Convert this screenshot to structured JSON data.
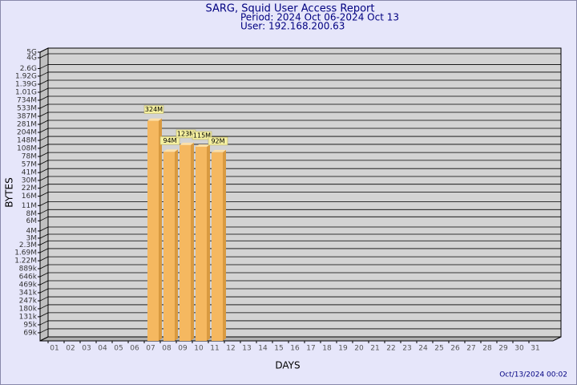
{
  "chart_data": {
    "type": "bar",
    "title": "SARG, Squid User Access Report",
    "subtitle": "Period: 2024 Oct 06-2024 Oct 13",
    "user": "User: 192.168.200.63",
    "xlabel": "DAYS",
    "ylabel": "BYTES",
    "footer": "Oct/13/2024 00:02",
    "categories": [
      "01",
      "02",
      "03",
      "04",
      "05",
      "06",
      "07",
      "08",
      "09",
      "10",
      "11",
      "12",
      "13",
      "14",
      "15",
      "16",
      "17",
      "18",
      "19",
      "20",
      "21",
      "22",
      "23",
      "24",
      "25",
      "26",
      "27",
      "28",
      "29",
      "30",
      "31"
    ],
    "values": [
      null,
      null,
      null,
      null,
      null,
      null,
      324000000,
      94000000,
      123000000,
      115000000,
      92000000,
      null,
      null,
      null,
      null,
      null,
      null,
      null,
      null,
      null,
      null,
      null,
      null,
      null,
      null,
      null,
      null,
      null,
      null,
      null,
      null
    ],
    "value_labels": [
      null,
      null,
      null,
      null,
      null,
      null,
      "324M",
      "94M",
      "123M",
      "115M",
      "92M",
      null,
      null,
      null,
      null,
      null,
      null,
      null,
      null,
      null,
      null,
      null,
      null,
      null,
      null,
      null,
      null,
      null,
      null,
      null,
      null
    ],
    "color": "#f5b860",
    "log_scale": true,
    "grid": true,
    "ylim": [
      50000,
      5000000000
    ],
    "yticks": [
      {
        "value": 69000,
        "label": "69k"
      },
      {
        "value": 95000,
        "label": "95k"
      },
      {
        "value": 131000,
        "label": "131k"
      },
      {
        "value": 180000,
        "label": "180k"
      },
      {
        "value": 247000,
        "label": "247k"
      },
      {
        "value": 341000,
        "label": "341k"
      },
      {
        "value": 469000,
        "label": "469k"
      },
      {
        "value": 646000,
        "label": "646k"
      },
      {
        "value": 889000,
        "label": "889k"
      },
      {
        "value": 1220000,
        "label": "1.22M"
      },
      {
        "value": 1690000,
        "label": "1.69M"
      },
      {
        "value": 2300000,
        "label": "2.3M"
      },
      {
        "value": 3000000,
        "label": "3M"
      },
      {
        "value": 4000000,
        "label": "4M"
      },
      {
        "value": 6000000,
        "label": "6M"
      },
      {
        "value": 8000000,
        "label": "8M"
      },
      {
        "value": 11000000,
        "label": "11M"
      },
      {
        "value": 16000000,
        "label": "16M"
      },
      {
        "value": 22000000,
        "label": "22M"
      },
      {
        "value": 30000000,
        "label": "30M"
      },
      {
        "value": 41000000,
        "label": "41M"
      },
      {
        "value": 57000000,
        "label": "57M"
      },
      {
        "value": 78000000,
        "label": "78M"
      },
      {
        "value": 108000000,
        "label": "108M"
      },
      {
        "value": 148000000,
        "label": "148M"
      },
      {
        "value": 204000000,
        "label": "204M"
      },
      {
        "value": 281000000,
        "label": "281M"
      },
      {
        "value": 387000000,
        "label": "387M"
      },
      {
        "value": 533000000,
        "label": "533M"
      },
      {
        "value": 734000000,
        "label": "734M"
      },
      {
        "value": 1010000000,
        "label": "1.01G"
      },
      {
        "value": 1390000000,
        "label": "1.39G"
      },
      {
        "value": 1920000000,
        "label": "1.92G"
      },
      {
        "value": 2600000000,
        "label": "2.6G"
      },
      {
        "value": 4000000000,
        "label": "4G"
      },
      {
        "value": 5000000000,
        "label": "5G"
      }
    ]
  }
}
